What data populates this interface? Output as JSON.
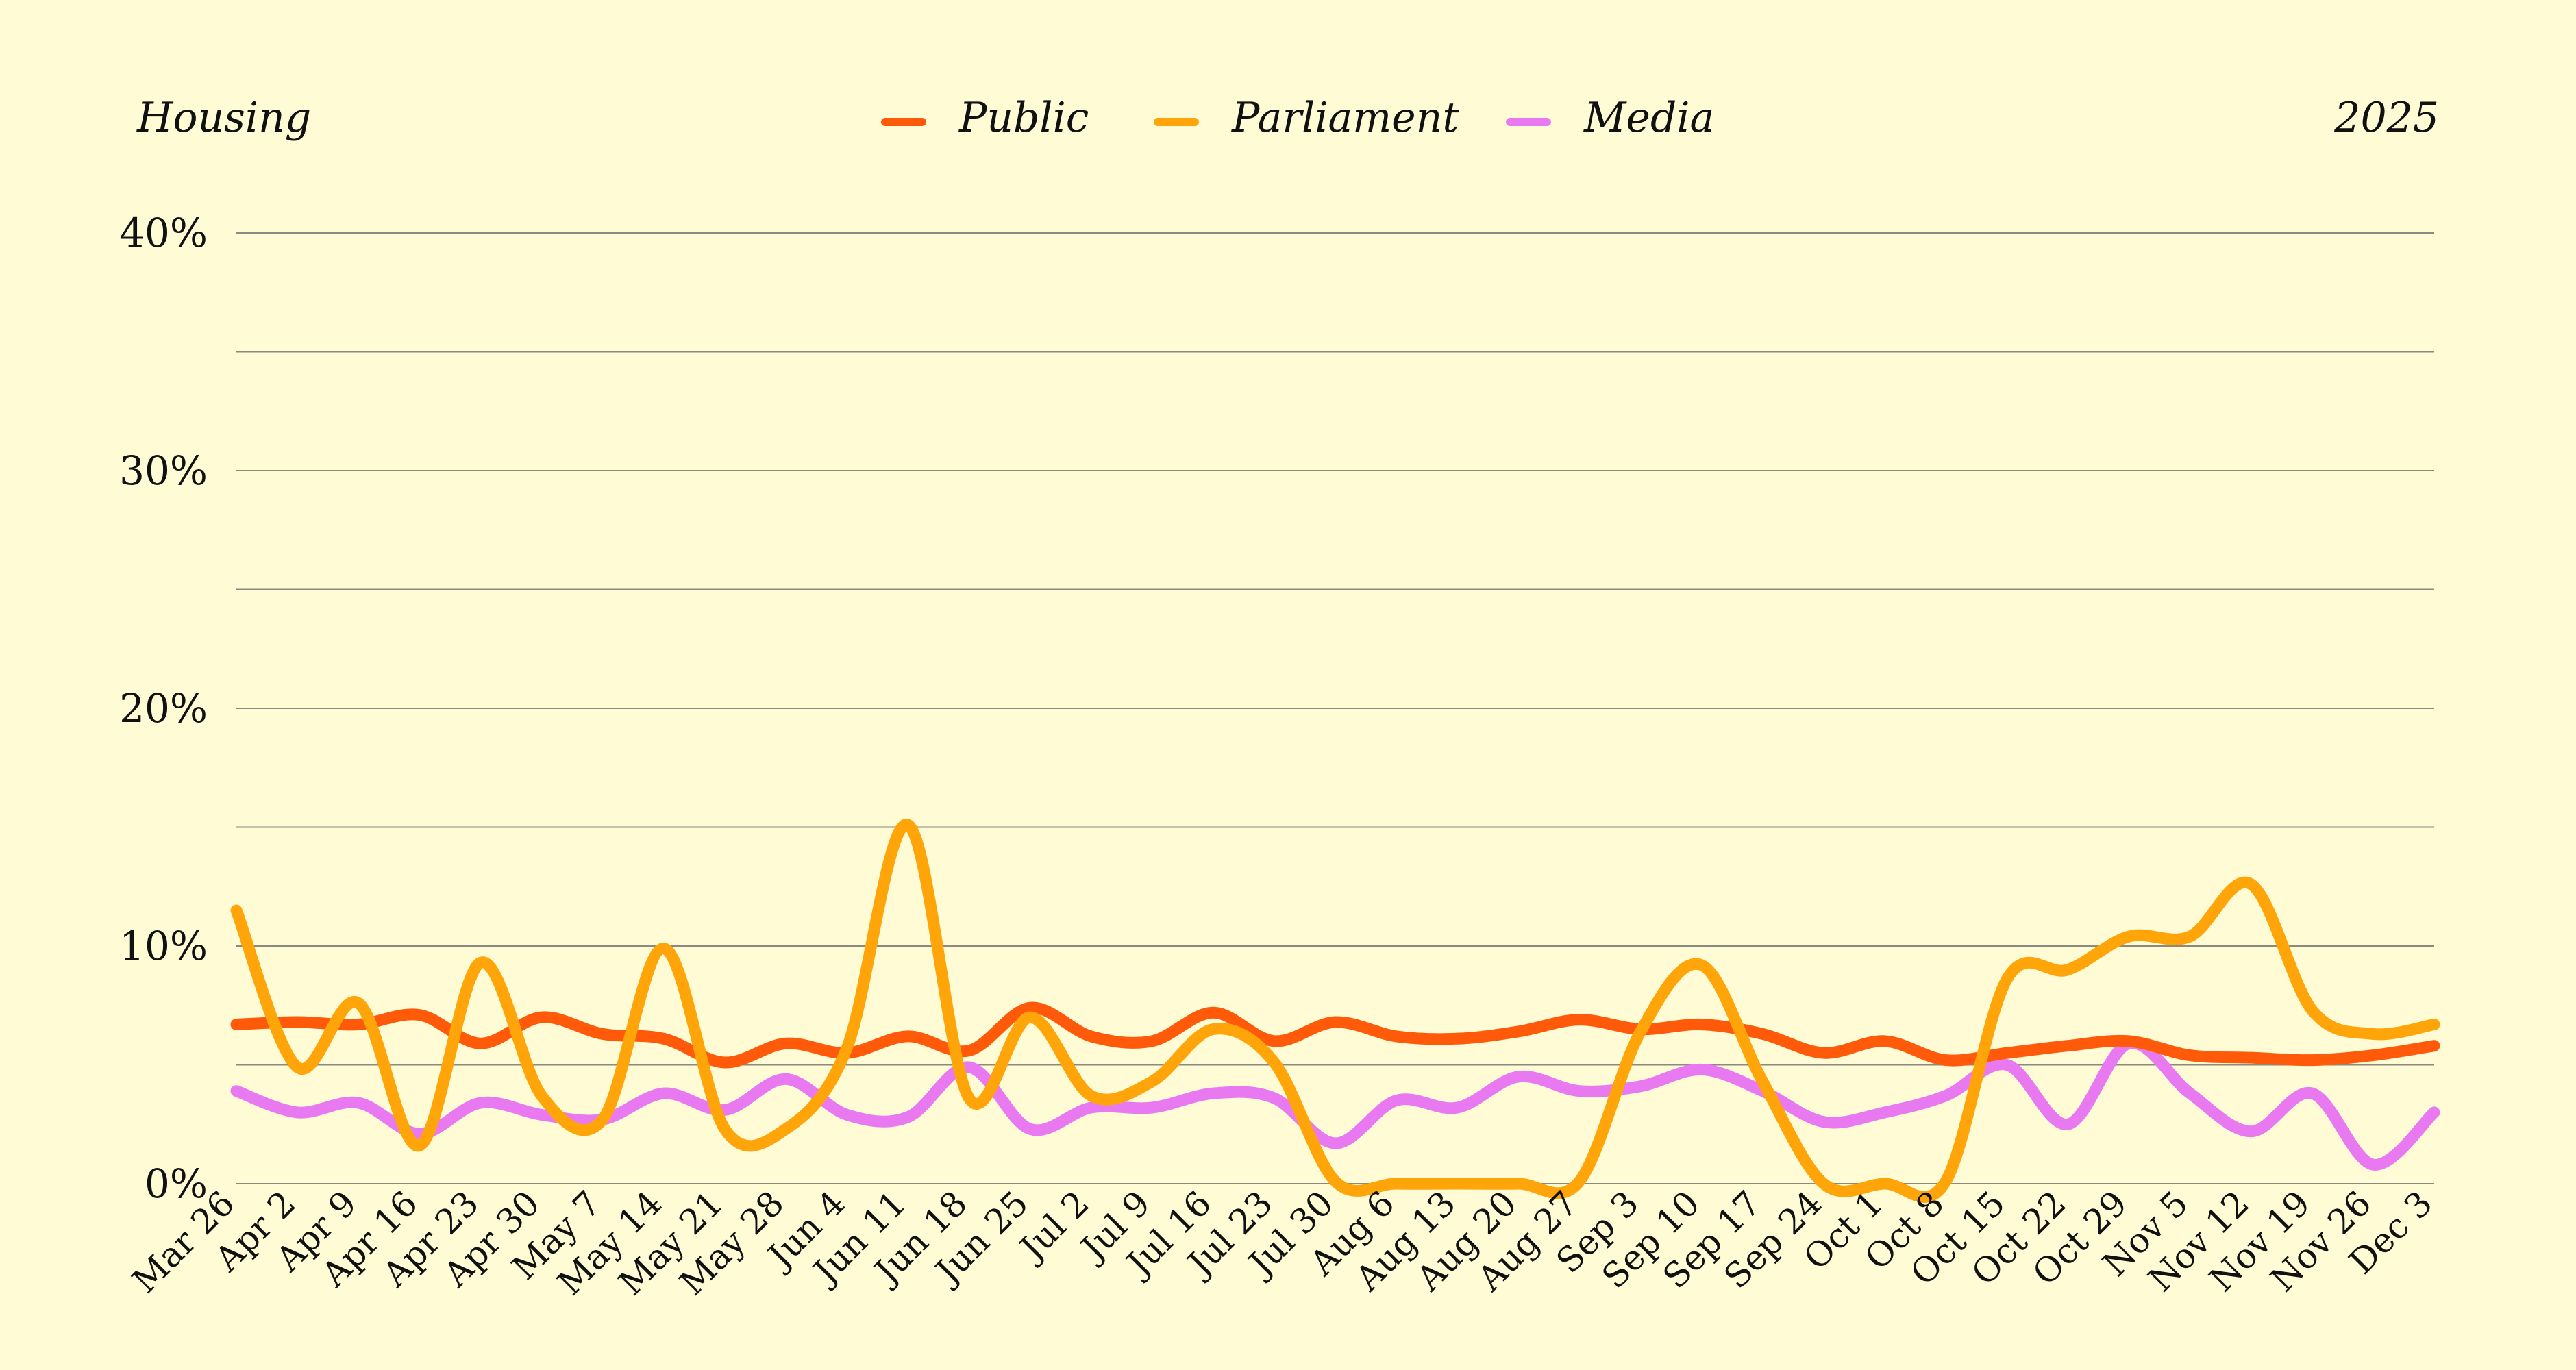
{
  "header": {
    "left_label": "Housing",
    "right_label": "2025"
  },
  "chart_data": {
    "type": "line",
    "title": "",
    "xlabel": "",
    "ylabel": "",
    "ylim": [
      0,
      40
    ],
    "y_ticks": [
      0,
      10,
      20,
      30,
      40
    ],
    "y_tick_labels": [
      "0%",
      "10%",
      "20%",
      "30%",
      "40%"
    ],
    "grid": true,
    "legend_position": "top-center",
    "categories": [
      "Mar 26",
      "Apr 2",
      "Apr 9",
      "Apr 16",
      "Apr 23",
      "Apr 30",
      "May 7",
      "May 14",
      "May 21",
      "May 28",
      "Jun 4",
      "Jun 11",
      "Jun 18",
      "Jun 25",
      "Jul 2",
      "Jul 9",
      "Jul 16",
      "Jul 23",
      "Jul 30",
      "Aug 6",
      "Aug 13",
      "Aug 20",
      "Aug 27",
      "Sep 3",
      "Sep 10",
      "Sep 17",
      "Sep 24",
      "Oct 1",
      "Oct 8",
      "Oct 15",
      "Oct 22",
      "Oct 29",
      "Nov 5",
      "Nov 12",
      "Nov 19",
      "Nov 26",
      "Dec 3"
    ],
    "series": [
      {
        "name": "Public",
        "color": "#FF5A0A",
        "values": [
          6.7,
          6.8,
          6.7,
          7.1,
          5.9,
          7.0,
          6.3,
          6.1,
          5.1,
          5.9,
          5.5,
          6.2,
          5.6,
          7.4,
          6.2,
          6.0,
          7.2,
          6.0,
          6.8,
          6.2,
          6.1,
          6.4,
          6.9,
          6.5,
          6.7,
          6.3,
          5.5,
          6.0,
          5.2,
          5.5,
          5.8,
          6.0,
          5.4,
          5.3,
          5.2,
          5.4,
          5.8
        ]
      },
      {
        "name": "Parliament",
        "color": "#FFA50A",
        "values": [
          11.5,
          4.9,
          7.6,
          1.6,
          9.3,
          3.7,
          2.7,
          9.9,
          2.3,
          2.3,
          5.7,
          15.1,
          3.6,
          7.0,
          3.7,
          4.3,
          6.5,
          5.1,
          0.1,
          0.0,
          0.0,
          0.0,
          0.1,
          6.4,
          9.2,
          4.3,
          0.0,
          0.0,
          0.1,
          8.6,
          9.0,
          10.4,
          10.4,
          12.6,
          7.3,
          6.3,
          6.7
        ]
      },
      {
        "name": "Media",
        "color": "#E879F0",
        "values": [
          3.9,
          3.0,
          3.4,
          2.1,
          3.4,
          2.9,
          2.7,
          3.8,
          3.1,
          4.4,
          2.9,
          2.8,
          4.9,
          2.3,
          3.2,
          3.2,
          3.8,
          3.6,
          1.7,
          3.5,
          3.2,
          4.5,
          3.9,
          4.1,
          4.8,
          3.9,
          2.6,
          3.0,
          3.7,
          5.0,
          2.5,
          5.9,
          3.8,
          2.2,
          3.8,
          0.8,
          3.0
        ]
      }
    ]
  }
}
